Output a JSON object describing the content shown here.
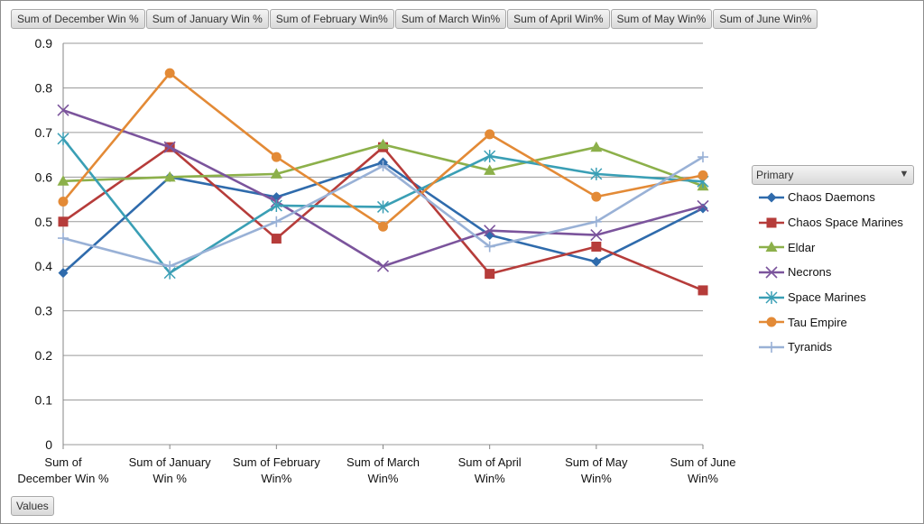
{
  "field_buttons": [
    "Sum of December Win %",
    "Sum of January Win %",
    "Sum of February Win%",
    "Sum of March Win%",
    "Sum of April Win%",
    "Sum of May Win%",
    "Sum of June Win%"
  ],
  "values_button": "Values",
  "legend": {
    "title": "Primary",
    "filter_icon": "filter-icon"
  },
  "chart_data": {
    "type": "line",
    "categories": [
      [
        "Sum of",
        "December Win %"
      ],
      [
        "Sum of January",
        "Win %"
      ],
      [
        "Sum of February",
        "Win%"
      ],
      [
        "Sum of March",
        "Win%"
      ],
      [
        "Sum of April",
        "Win%"
      ],
      [
        "Sum of May",
        "Win%"
      ],
      [
        "Sum of June",
        "Win%"
      ]
    ],
    "ylim": [
      0,
      0.9
    ],
    "yticks": [
      "0",
      "0.1",
      "0.2",
      "0.3",
      "0.4",
      "0.5",
      "0.6",
      "0.7",
      "0.8",
      "0.9"
    ],
    "grid": true,
    "legend_position": "right",
    "series": [
      {
        "name": "Chaos Daemons",
        "color": "#2f6bac",
        "marker": "diamond",
        "values": [
          0.385,
          0.6,
          0.555,
          0.633,
          0.47,
          0.41,
          0.53
        ]
      },
      {
        "name": "Chaos Space Marines",
        "color": "#b63c3a",
        "marker": "square",
        "values": [
          0.5,
          0.667,
          0.462,
          0.667,
          0.383,
          0.444,
          0.346
        ]
      },
      {
        "name": "Eldar",
        "color": "#8cb04a",
        "marker": "triangle",
        "values": [
          0.591,
          0.6,
          0.607,
          0.673,
          0.615,
          0.667,
          0.58
        ]
      },
      {
        "name": "Necrons",
        "color": "#7b549c",
        "marker": "x",
        "values": [
          0.75,
          0.667,
          0.545,
          0.4,
          0.48,
          0.47,
          0.535
        ]
      },
      {
        "name": "Space Marines",
        "color": "#3a9fb5",
        "marker": "star",
        "values": [
          0.686,
          0.385,
          0.536,
          0.533,
          0.647,
          0.607,
          0.59
        ]
      },
      {
        "name": "Tau Empire",
        "color": "#e38a36",
        "marker": "circle",
        "values": [
          0.545,
          0.833,
          0.645,
          0.489,
          0.696,
          0.556,
          0.604
        ]
      },
      {
        "name": "Tyranids",
        "color": "#99b1d6",
        "marker": "plus",
        "values": [
          0.463,
          0.4,
          0.5,
          0.625,
          0.444,
          0.5,
          0.645
        ]
      }
    ]
  }
}
